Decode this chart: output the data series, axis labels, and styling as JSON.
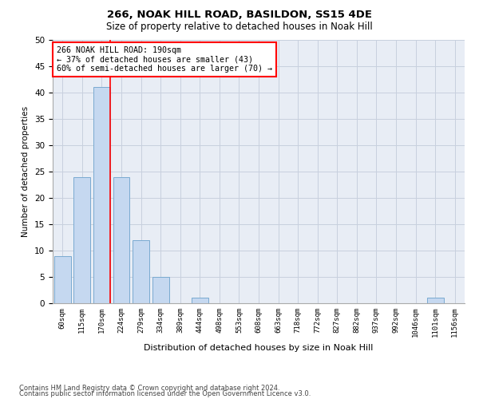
{
  "title": "266, NOAK HILL ROAD, BASILDON, SS15 4DE",
  "subtitle": "Size of property relative to detached houses in Noak Hill",
  "xlabel": "Distribution of detached houses by size in Noak Hill",
  "ylabel": "Number of detached properties",
  "categories": [
    "60sqm",
    "115sqm",
    "170sqm",
    "224sqm",
    "279sqm",
    "334sqm",
    "389sqm",
    "444sqm",
    "498sqm",
    "553sqm",
    "608sqm",
    "663sqm",
    "718sqm",
    "772sqm",
    "827sqm",
    "882sqm",
    "937sqm",
    "992sqm",
    "1046sqm",
    "1101sqm",
    "1156sqm"
  ],
  "values": [
    9,
    24,
    41,
    24,
    12,
    5,
    0,
    1,
    0,
    0,
    0,
    0,
    0,
    0,
    0,
    0,
    0,
    0,
    0,
    1,
    0
  ],
  "bar_color": "#c5d8f0",
  "bar_edge_color": "#7aaad0",
  "property_line_x": 2.43,
  "annotation_text": "266 NOAK HILL ROAD: 190sqm\n← 37% of detached houses are smaller (43)\n60% of semi-detached houses are larger (70) →",
  "annotation_box_color": "white",
  "annotation_box_edge_color": "red",
  "vline_color": "red",
  "ylim": [
    0,
    50
  ],
  "yticks": [
    0,
    5,
    10,
    15,
    20,
    25,
    30,
    35,
    40,
    45,
    50
  ],
  "grid_color": "#c8d0de",
  "background_color": "#e8edf5",
  "footer_line1": "Contains HM Land Registry data © Crown copyright and database right 2024.",
  "footer_line2": "Contains public sector information licensed under the Open Government Licence v3.0."
}
